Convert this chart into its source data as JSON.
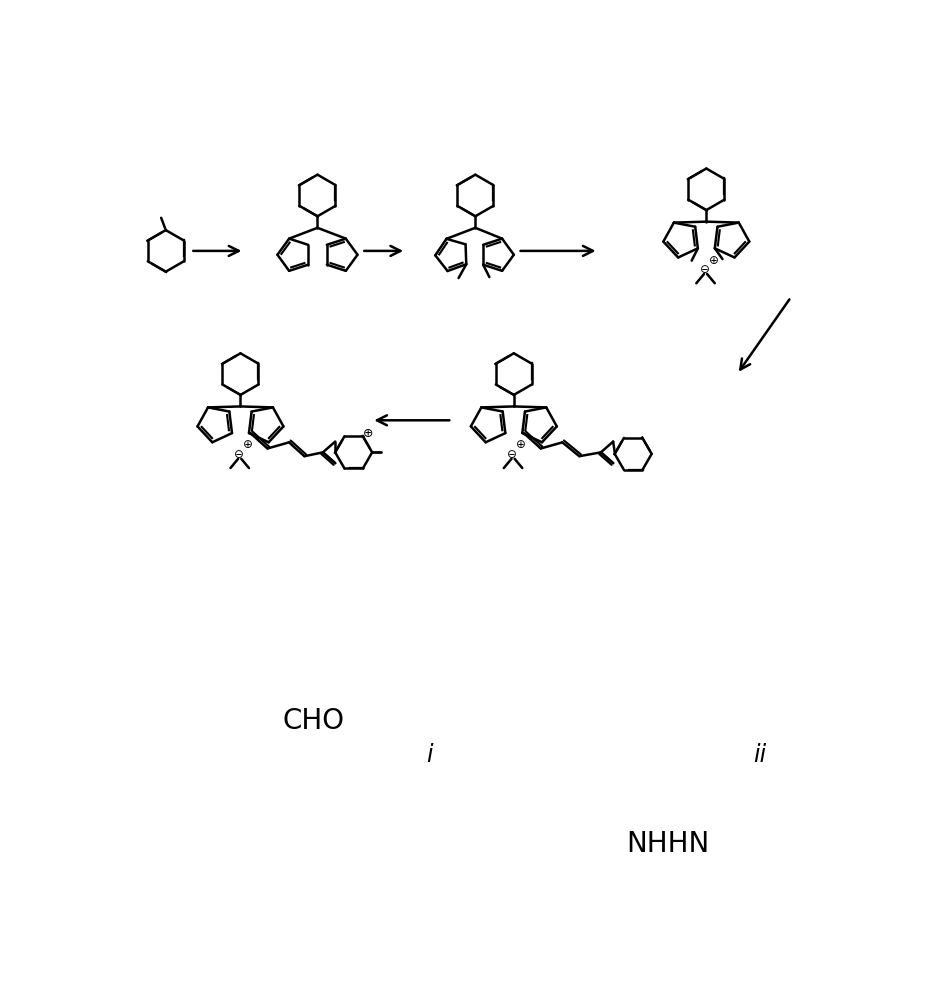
{
  "background_color": "#ffffff",
  "line_color": "#000000",
  "text_color": "#000000",
  "figsize": [
    9.5,
    10.0
  ],
  "dpi": 100,
  "label_i": "i",
  "label_ii": "ii",
  "label_cho": "CHO",
  "label_nhhn": "NHHN"
}
